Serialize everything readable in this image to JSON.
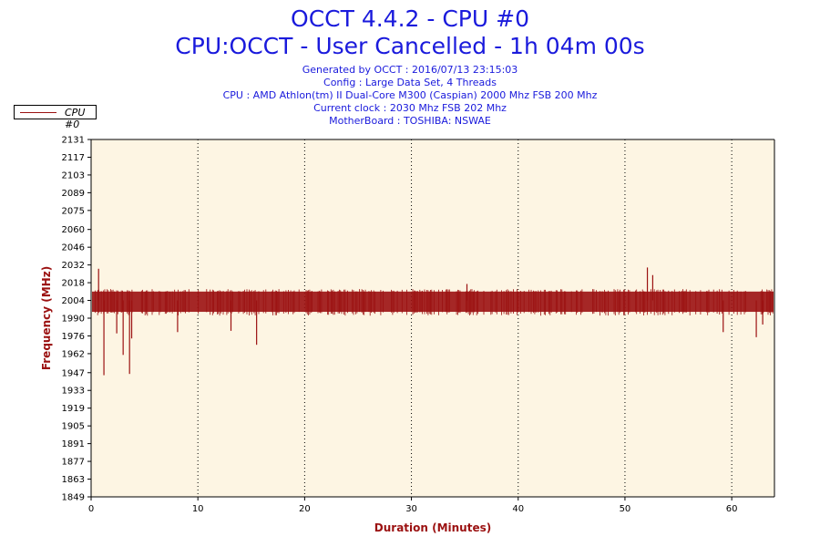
{
  "header": {
    "title": "OCCT 4.4.2 - CPU #0",
    "subtitle": "CPU:OCCT - User Cancelled - 1h 04m 00s",
    "generated": "Generated by OCCT : 2016/07/13 23:15:03",
    "config": "Config : Large Data Set, 4 Threads",
    "cpu": "CPU : AMD Athlon(tm) II Dual-Core M300 (Caspian) 2000 Mhz FSB 200 Mhz",
    "clock": "Current clock : 2030 Mhz FSB 202 Mhz",
    "motherboard": "MotherBoard : TOSHIBA: NSWAE"
  },
  "legend": {
    "label": "CPU #0",
    "color": "#9b1111"
  },
  "colors": {
    "plot_background": "#fdf5e3",
    "series": "#9b1111",
    "text": "#1a1adc"
  },
  "chart_data": {
    "type": "line",
    "xlabel": "Duration (Minutes)",
    "ylabel": "Frequency (MHz)",
    "xlim": [
      0,
      64
    ],
    "ylim": [
      1849,
      2131
    ],
    "xticks": [
      0,
      10,
      20,
      30,
      40,
      50,
      60
    ],
    "yticks": [
      1849,
      1863,
      1877,
      1891,
      1905,
      1919,
      1933,
      1947,
      1962,
      1976,
      1990,
      2004,
      2018,
      2032,
      2046,
      2060,
      2075,
      2089,
      2103,
      2117,
      2131
    ],
    "grid": "vertical-dotted",
    "series": [
      {
        "name": "CPU #0",
        "baseline": 2004,
        "band": [
          1995,
          2011
        ],
        "spikes": [
          {
            "x": 0.7,
            "y": 2029
          },
          {
            "x": 1.2,
            "y": 1945
          },
          {
            "x": 2.4,
            "y": 1978
          },
          {
            "x": 3.0,
            "y": 1961
          },
          {
            "x": 3.6,
            "y": 1946
          },
          {
            "x": 3.8,
            "y": 1974
          },
          {
            "x": 8.1,
            "y": 1979
          },
          {
            "x": 13.1,
            "y": 1980
          },
          {
            "x": 15.5,
            "y": 1969
          },
          {
            "x": 35.2,
            "y": 2017
          },
          {
            "x": 52.1,
            "y": 2030
          },
          {
            "x": 52.6,
            "y": 2024
          },
          {
            "x": 59.2,
            "y": 1979
          },
          {
            "x": 62.3,
            "y": 1975
          },
          {
            "x": 62.9,
            "y": 1985
          }
        ]
      }
    ]
  }
}
